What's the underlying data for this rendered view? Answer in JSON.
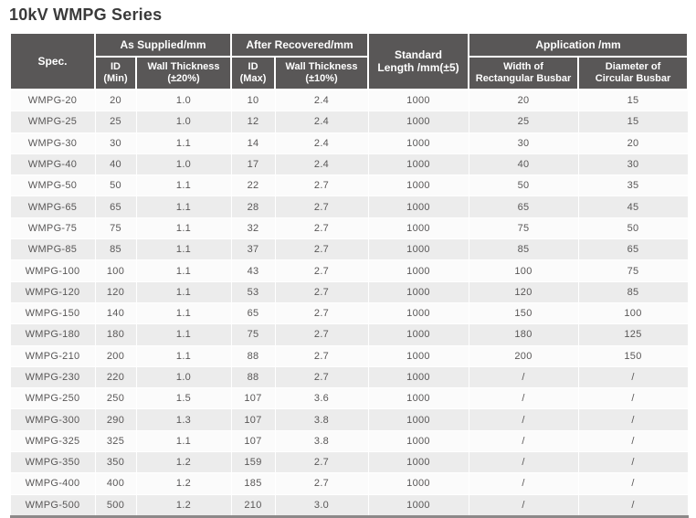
{
  "page_title": "10kV WMPG Series",
  "table": {
    "header": {
      "spec": "Spec.",
      "as_supplied_group": "As Supplied/mm",
      "after_recovered_group": "After Recovered/mm",
      "standard_length": "Standard\nLength /mm(±5)",
      "application_group": "Application /mm",
      "id_min": "ID\n(Min)",
      "wall_thickness_20": "Wall Thickness\n(±20%)",
      "id_max": "ID\n(Max)",
      "wall_thickness_10": "Wall Thickness\n(±10%)",
      "width_rect_busbar": "Width of\nRectangular Busbar",
      "diameter_circ_busbar": "Diameter of\nCircular Busbar"
    },
    "rows": [
      {
        "spec": "WMPG-20",
        "id_min": "20",
        "wall20": "1.0",
        "id_max": "10",
        "wall10": "2.4",
        "std_length": "1000",
        "width_rect": "20",
        "dia_circ": "15"
      },
      {
        "spec": "WMPG-25",
        "id_min": "25",
        "wall20": "1.0",
        "id_max": "12",
        "wall10": "2.4",
        "std_length": "1000",
        "width_rect": "25",
        "dia_circ": "15"
      },
      {
        "spec": "WMPG-30",
        "id_min": "30",
        "wall20": "1.1",
        "id_max": "14",
        "wall10": "2.4",
        "std_length": "1000",
        "width_rect": "30",
        "dia_circ": "20"
      },
      {
        "spec": "WMPG-40",
        "id_min": "40",
        "wall20": "1.0",
        "id_max": "17",
        "wall10": "2.4",
        "std_length": "1000",
        "width_rect": "40",
        "dia_circ": "30"
      },
      {
        "spec": "WMPG-50",
        "id_min": "50",
        "wall20": "1.1",
        "id_max": "22",
        "wall10": "2.7",
        "std_length": "1000",
        "width_rect": "50",
        "dia_circ": "35"
      },
      {
        "spec": "WMPG-65",
        "id_min": "65",
        "wall20": "1.1",
        "id_max": "28",
        "wall10": "2.7",
        "std_length": "1000",
        "width_rect": "65",
        "dia_circ": "45"
      },
      {
        "spec": "WMPG-75",
        "id_min": "75",
        "wall20": "1.1",
        "id_max": "32",
        "wall10": "2.7",
        "std_length": "1000",
        "width_rect": "75",
        "dia_circ": "50"
      },
      {
        "spec": "WMPG-85",
        "id_min": "85",
        "wall20": "1.1",
        "id_max": "37",
        "wall10": "2.7",
        "std_length": "1000",
        "width_rect": "85",
        "dia_circ": "65"
      },
      {
        "spec": "WMPG-100",
        "id_min": "100",
        "wall20": "1.1",
        "id_max": "43",
        "wall10": "2.7",
        "std_length": "1000",
        "width_rect": "100",
        "dia_circ": "75"
      },
      {
        "spec": "WMPG-120",
        "id_min": "120",
        "wall20": "1.1",
        "id_max": "53",
        "wall10": "2.7",
        "std_length": "1000",
        "width_rect": "120",
        "dia_circ": "85"
      },
      {
        "spec": "WMPG-150",
        "id_min": "140",
        "wall20": "1.1",
        "id_max": "65",
        "wall10": "2.7",
        "std_length": "1000",
        "width_rect": "150",
        "dia_circ": "100"
      },
      {
        "spec": "WMPG-180",
        "id_min": "180",
        "wall20": "1.1",
        "id_max": "75",
        "wall10": "2.7",
        "std_length": "1000",
        "width_rect": "180",
        "dia_circ": "125"
      },
      {
        "spec": "WMPG-210",
        "id_min": "200",
        "wall20": "1.1",
        "id_max": "88",
        "wall10": "2.7",
        "std_length": "1000",
        "width_rect": "200",
        "dia_circ": "150"
      },
      {
        "spec": "WMPG-230",
        "id_min": "220",
        "wall20": "1.0",
        "id_max": "88",
        "wall10": "2.7",
        "std_length": "1000",
        "width_rect": "/",
        "dia_circ": "/"
      },
      {
        "spec": "WMPG-250",
        "id_min": "250",
        "wall20": "1.5",
        "id_max": "107",
        "wall10": "3.6",
        "std_length": "1000",
        "width_rect": "/",
        "dia_circ": "/"
      },
      {
        "spec": "WMPG-300",
        "id_min": "290",
        "wall20": "1.3",
        "id_max": "107",
        "wall10": "3.8",
        "std_length": "1000",
        "width_rect": "/",
        "dia_circ": "/"
      },
      {
        "spec": "WMPG-325",
        "id_min": "325",
        "wall20": "1.1",
        "id_max": "107",
        "wall10": "3.8",
        "std_length": "1000",
        "width_rect": "/",
        "dia_circ": "/"
      },
      {
        "spec": "WMPG-350",
        "id_min": "350",
        "wall20": "1.2",
        "id_max": "159",
        "wall10": "2.7",
        "std_length": "1000",
        "width_rect": "/",
        "dia_circ": "/"
      },
      {
        "spec": "WMPG-400",
        "id_min": "400",
        "wall20": "1.2",
        "id_max": "185",
        "wall10": "2.7",
        "std_length": "1000",
        "width_rect": "/",
        "dia_circ": "/"
      },
      {
        "spec": "WMPG-500",
        "id_min": "500",
        "wall20": "1.2",
        "id_max": "210",
        "wall10": "3.0",
        "std_length": "1000",
        "width_rect": "/",
        "dia_circ": "/"
      }
    ]
  },
  "colors": {
    "header_bg": "#595757",
    "header_text": "#ffffff",
    "row_odd": "#fbfbfb",
    "row_even": "#ececec",
    "body_text": "#595757",
    "bottom_rule": "#8c8989",
    "title_text": "#3a3a3a"
  }
}
